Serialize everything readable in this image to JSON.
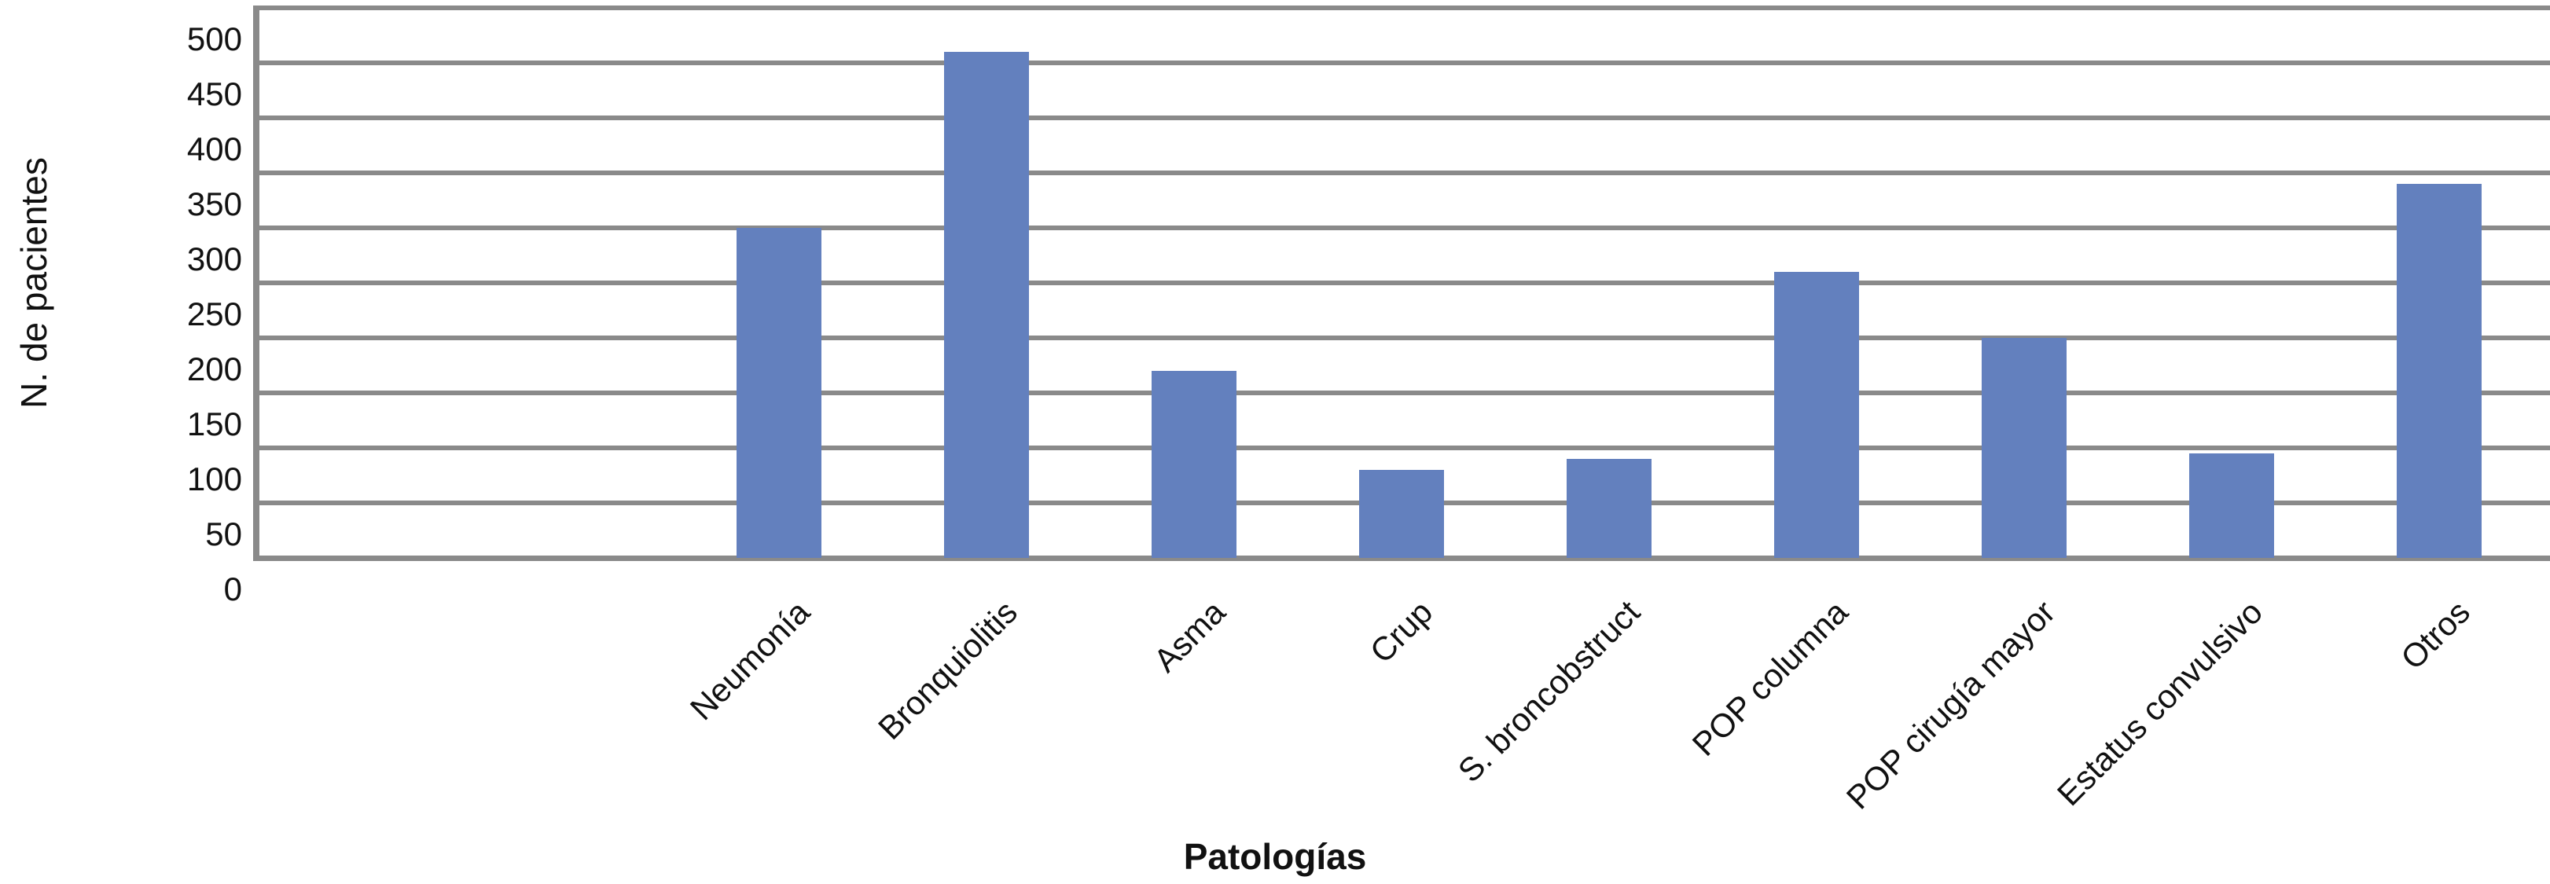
{
  "chart_data": {
    "type": "bar",
    "title": "",
    "categories": [
      "Neumonía",
      "Bronquiolitis",
      "Asma",
      "Crup",
      "S. broncobstruct",
      "POP columna",
      "POP cirugía mayor",
      "Estatus convulsivo",
      "Otros"
    ],
    "values": [
      300,
      460,
      170,
      80,
      90,
      260,
      200,
      95,
      340
    ],
    "xlabel": "Patologías",
    "ylabel": "N. de pacientes",
    "ylim": [
      0,
      500
    ],
    "yticks": [
      0,
      50,
      100,
      150,
      200,
      250,
      300,
      350,
      400,
      450,
      500
    ],
    "grid": "horizontal",
    "legend": "none",
    "bar_color": "#6380BE",
    "grid_color": "#8a8a8a",
    "text_color": "#111111",
    "background": "#ffffff"
  }
}
